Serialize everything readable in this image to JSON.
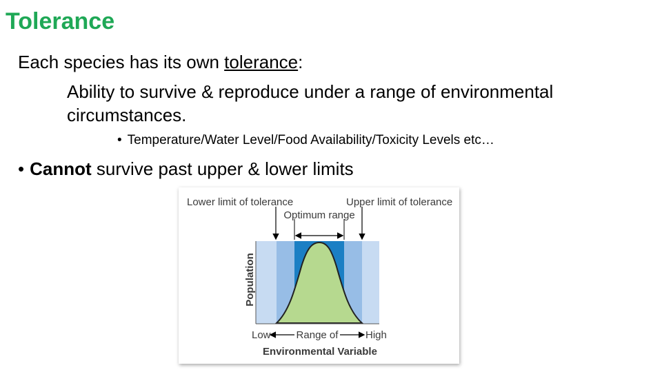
{
  "title": "Tolerance",
  "line1": {
    "prefix": "Each species has its own ",
    "term": "tolerance",
    "suffix": ":"
  },
  "definition": {
    "line_a": "Ability to survive & reproduce under a range of environmental",
    "line_b": "circumstances."
  },
  "examples": {
    "bullet": "•",
    "text": "Temperature/Water Level/Food Availability/Toxicity Levels etc…"
  },
  "limits": {
    "bullet": "•",
    "term": "Cannot",
    "text": " survive past upper & lower limits"
  },
  "figure": {
    "labels": {
      "lower_limit": "Lower limit of tolerance",
      "upper_limit": "Upper limit of tolerance",
      "optimum": "Optimum range",
      "y_axis": "Population",
      "low": "Low",
      "range_line1": "Range of",
      "range_line2": "Environmental Variable",
      "high": "High"
    },
    "colors": {
      "outer_band": "#c7dbf2",
      "middle_band": "#97bde6",
      "optimum_band": "#1b7fc4",
      "curve_fill": "#b6d98f"
    }
  }
}
